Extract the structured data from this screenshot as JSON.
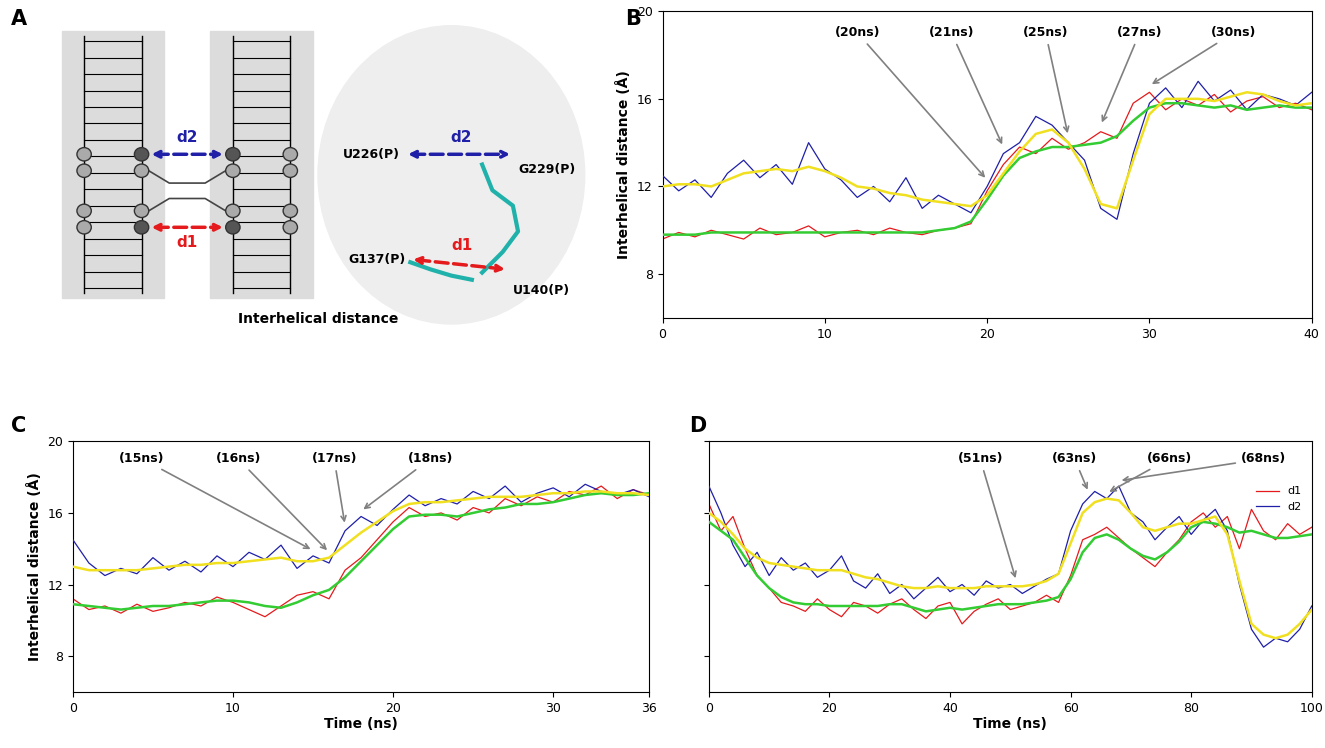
{
  "diagram": {
    "panel": "A",
    "caption": "Interhelical distance",
    "distances": [
      {
        "name": "d1",
        "color": "#e41a1c",
        "from": "G137(P)",
        "to": "U140(P)"
      },
      {
        "name": "d2",
        "color": "#1f1fa8",
        "from": "U226(P)",
        "to": "G229(P)"
      }
    ]
  },
  "chart_data": [
    {
      "panel": "B",
      "type": "line",
      "y_label": "Interhelical distance (Å)",
      "x": [
        0,
        1,
        2,
        3,
        4,
        5,
        6,
        7,
        8,
        9,
        10,
        11,
        12,
        13,
        14,
        15,
        16,
        17,
        18,
        19,
        20,
        21,
        22,
        23,
        24,
        25,
        26,
        27,
        28,
        29,
        30,
        31,
        32,
        33,
        34,
        35,
        36,
        37,
        38,
        39,
        40
      ],
      "xlim": [
        0,
        40
      ],
      "xticks": [
        0,
        10,
        20,
        30,
        40
      ],
      "ylim": [
        6,
        20
      ],
      "yticks": [
        8,
        12,
        16,
        20
      ],
      "series": [
        {
          "color": "#e41a1c",
          "values": [
            9.6,
            9.9,
            9.7,
            10.0,
            9.8,
            9.6,
            10.1,
            9.8,
            9.9,
            10.2,
            9.7,
            9.9,
            10.0,
            9.8,
            10.1,
            9.9,
            9.8,
            10.0,
            10.1,
            10.3,
            11.8,
            13.0,
            13.8,
            13.5,
            14.2,
            13.7,
            14.0,
            14.5,
            14.2,
            15.8,
            16.3,
            15.5,
            16.0,
            15.7,
            16.2,
            15.4,
            15.9,
            16.1,
            15.6,
            15.8,
            15.5
          ]
        },
        {
          "color": "#1f1fa8",
          "values": [
            12.5,
            11.8,
            12.3,
            11.5,
            12.6,
            13.2,
            12.4,
            13.0,
            12.1,
            14.0,
            12.8,
            12.3,
            11.5,
            12.0,
            11.3,
            12.4,
            11.0,
            11.6,
            11.2,
            10.8,
            12.0,
            13.5,
            14.0,
            15.2,
            14.8,
            14.0,
            13.2,
            11.0,
            10.5,
            13.5,
            15.8,
            16.5,
            15.6,
            16.8,
            15.9,
            16.4,
            15.5,
            16.2,
            16.0,
            15.7,
            16.3
          ]
        },
        {
          "color": "#33cc33",
          "values": [
            9.8,
            9.8,
            9.8,
            9.9,
            9.9,
            9.9,
            9.9,
            9.9,
            9.9,
            9.9,
            9.9,
            9.9,
            9.9,
            9.9,
            9.9,
            9.9,
            9.9,
            10.0,
            10.1,
            10.4,
            11.4,
            12.5,
            13.3,
            13.6,
            13.8,
            13.8,
            13.9,
            14.0,
            14.3,
            15.0,
            15.6,
            15.8,
            15.8,
            15.7,
            15.6,
            15.7,
            15.5,
            15.6,
            15.7,
            15.6,
            15.6
          ]
        },
        {
          "color": "#f0e020",
          "values": [
            12.0,
            12.1,
            12.1,
            12.0,
            12.3,
            12.6,
            12.7,
            12.8,
            12.7,
            12.9,
            12.7,
            12.4,
            12.0,
            11.9,
            11.7,
            11.6,
            11.4,
            11.3,
            11.2,
            11.1,
            11.6,
            12.6,
            13.6,
            14.4,
            14.6,
            14.0,
            12.8,
            11.2,
            11.0,
            13.2,
            15.3,
            16.0,
            16.0,
            16.0,
            15.9,
            16.1,
            16.3,
            16.2,
            15.9,
            15.7,
            15.8
          ]
        }
      ],
      "annotations": [
        {
          "text": "(20ns)",
          "x": 20
        },
        {
          "text": "(21ns)",
          "x": 21
        },
        {
          "text": "(25ns)",
          "x": 25
        },
        {
          "text": "(27ns)",
          "x": 27
        },
        {
          "text": "(30ns)",
          "x": 30
        }
      ]
    },
    {
      "panel": "C",
      "type": "line",
      "x_label": "Time (ns)",
      "y_label": "Interhelical distance (Å)",
      "x": [
        0,
        1,
        2,
        3,
        4,
        5,
        6,
        7,
        8,
        9,
        10,
        11,
        12,
        13,
        14,
        15,
        16,
        17,
        18,
        19,
        20,
        21,
        22,
        23,
        24,
        25,
        26,
        27,
        28,
        29,
        30,
        31,
        32,
        33,
        34,
        35,
        36
      ],
      "xlim": [
        0,
        36
      ],
      "xticks": [
        0,
        10,
        20,
        30,
        36
      ],
      "ylim": [
        6,
        20
      ],
      "yticks": [
        8,
        12,
        16,
        20
      ],
      "series": [
        {
          "color": "#e41a1c",
          "values": [
            11.2,
            10.6,
            10.8,
            10.4,
            10.9,
            10.5,
            10.7,
            11.0,
            10.8,
            11.3,
            11.0,
            10.6,
            10.2,
            10.8,
            11.4,
            11.6,
            11.2,
            12.8,
            13.5,
            14.5,
            15.5,
            16.3,
            15.8,
            16.0,
            15.6,
            16.3,
            16.0,
            16.8,
            16.4,
            16.9,
            16.6,
            17.2,
            17.0,
            17.5,
            16.8,
            17.3,
            17.0
          ]
        },
        {
          "color": "#1f1fa8",
          "values": [
            14.5,
            13.2,
            12.5,
            12.9,
            12.6,
            13.5,
            12.8,
            13.3,
            12.7,
            13.6,
            13.0,
            13.8,
            13.4,
            14.2,
            12.9,
            13.6,
            13.2,
            15.0,
            15.8,
            15.3,
            16.2,
            17.0,
            16.4,
            16.8,
            16.5,
            17.2,
            16.8,
            17.5,
            16.6,
            17.1,
            17.4,
            16.9,
            17.6,
            17.2,
            17.0,
            17.3,
            16.9
          ]
        },
        {
          "color": "#33cc33",
          "values": [
            10.9,
            10.8,
            10.7,
            10.6,
            10.7,
            10.8,
            10.8,
            10.9,
            11.0,
            11.1,
            11.1,
            11.0,
            10.8,
            10.7,
            11.0,
            11.4,
            11.7,
            12.4,
            13.3,
            14.2,
            15.1,
            15.8,
            15.9,
            15.9,
            15.8,
            16.0,
            16.2,
            16.3,
            16.5,
            16.5,
            16.6,
            16.8,
            17.0,
            17.1,
            17.0,
            17.0,
            17.1
          ]
        },
        {
          "color": "#f0e020",
          "values": [
            13.0,
            12.8,
            12.8,
            12.8,
            12.8,
            12.9,
            13.0,
            13.1,
            13.1,
            13.2,
            13.2,
            13.3,
            13.4,
            13.5,
            13.3,
            13.3,
            13.5,
            14.2,
            14.9,
            15.5,
            16.1,
            16.5,
            16.6,
            16.6,
            16.7,
            16.8,
            16.9,
            16.9,
            16.9,
            17.0,
            17.1,
            17.1,
            17.2,
            17.2,
            17.1,
            17.1,
            17.0
          ]
        }
      ],
      "annotations": [
        {
          "text": "(15ns)",
          "x": 15
        },
        {
          "text": "(16ns)",
          "x": 16
        },
        {
          "text": "(17ns)",
          "x": 17
        },
        {
          "text": "(18ns)",
          "x": 18
        }
      ]
    },
    {
      "panel": "D",
      "type": "line",
      "x_label": "Time (ns)",
      "tick_labels": "x",
      "legend": "upper right",
      "x": [
        0,
        2,
        4,
        6,
        8,
        10,
        12,
        14,
        16,
        18,
        20,
        22,
        24,
        26,
        28,
        30,
        32,
        34,
        36,
        38,
        40,
        42,
        44,
        46,
        48,
        50,
        52,
        54,
        56,
        58,
        60,
        62,
        64,
        66,
        68,
        70,
        72,
        74,
        76,
        78,
        80,
        82,
        84,
        86,
        88,
        90,
        92,
        94,
        96,
        98,
        100
      ],
      "xlim": [
        0,
        100
      ],
      "xticks": [
        0,
        20,
        40,
        60,
        80,
        100
      ],
      "ylim": [
        6,
        20
      ],
      "yticks": [
        8,
        12,
        16,
        20
      ],
      "series": [
        {
          "name": "d1",
          "color": "#e41a1c",
          "values": [
            16.5,
            15.0,
            15.8,
            14.0,
            12.5,
            11.8,
            11.0,
            10.8,
            10.5,
            11.2,
            10.6,
            10.2,
            11.0,
            10.8,
            10.4,
            10.9,
            11.2,
            10.6,
            10.1,
            10.8,
            11.0,
            9.8,
            10.5,
            10.9,
            11.2,
            10.6,
            10.8,
            11.0,
            11.4,
            11.0,
            12.5,
            14.5,
            14.8,
            15.2,
            14.6,
            14.0,
            13.5,
            13.0,
            13.8,
            14.5,
            15.5,
            16.0,
            15.2,
            15.8,
            14.0,
            16.2,
            15.0,
            14.5,
            15.4,
            14.8,
            15.2
          ]
        },
        {
          "name": "d2",
          "color": "#1f1fa8",
          "values": [
            17.5,
            16.0,
            14.2,
            13.0,
            13.8,
            12.5,
            13.5,
            12.8,
            13.2,
            12.4,
            12.8,
            13.6,
            12.2,
            11.8,
            12.6,
            11.5,
            12.0,
            11.2,
            11.8,
            12.4,
            11.6,
            12.0,
            11.4,
            12.2,
            11.8,
            12.0,
            11.5,
            11.9,
            12.3,
            12.6,
            15.0,
            16.5,
            17.2,
            16.8,
            17.5,
            16.0,
            15.5,
            14.5,
            15.2,
            15.8,
            14.8,
            15.6,
            16.2,
            15.0,
            12.0,
            9.5,
            8.5,
            9.0,
            8.8,
            9.5,
            10.8
          ]
        },
        {
          "color": "#33cc33",
          "values": [
            15.5,
            15.0,
            14.5,
            13.5,
            12.5,
            11.8,
            11.3,
            11.0,
            10.9,
            10.9,
            10.8,
            10.8,
            10.8,
            10.8,
            10.8,
            10.9,
            10.9,
            10.7,
            10.5,
            10.6,
            10.7,
            10.6,
            10.7,
            10.8,
            10.9,
            10.9,
            10.9,
            11.0,
            11.1,
            11.3,
            12.3,
            13.8,
            14.6,
            14.8,
            14.5,
            14.0,
            13.6,
            13.4,
            13.8,
            14.4,
            15.2,
            15.5,
            15.4,
            15.2,
            14.9,
            15.0,
            14.8,
            14.6,
            14.6,
            14.7,
            14.8
          ]
        },
        {
          "color": "#f0e020",
          "values": [
            16.0,
            15.5,
            14.8,
            14.0,
            13.5,
            13.2,
            13.1,
            13.0,
            12.9,
            12.8,
            12.8,
            12.8,
            12.6,
            12.4,
            12.3,
            12.1,
            11.9,
            11.8,
            11.8,
            11.9,
            11.8,
            11.8,
            11.8,
            11.9,
            11.9,
            11.9,
            11.9,
            12.0,
            12.2,
            12.6,
            14.3,
            16.0,
            16.6,
            16.8,
            16.7,
            16.0,
            15.2,
            15.0,
            15.2,
            15.4,
            15.4,
            15.6,
            15.8,
            14.8,
            12.2,
            9.8,
            9.2,
            9.0,
            9.2,
            9.8,
            10.6
          ]
        }
      ],
      "annotations": [
        {
          "text": "(51ns)",
          "x": 51
        },
        {
          "text": "(63ns)",
          "x": 63
        },
        {
          "text": "(66ns)",
          "x": 66
        },
        {
          "text": "(68ns)",
          "x": 68
        }
      ]
    }
  ]
}
